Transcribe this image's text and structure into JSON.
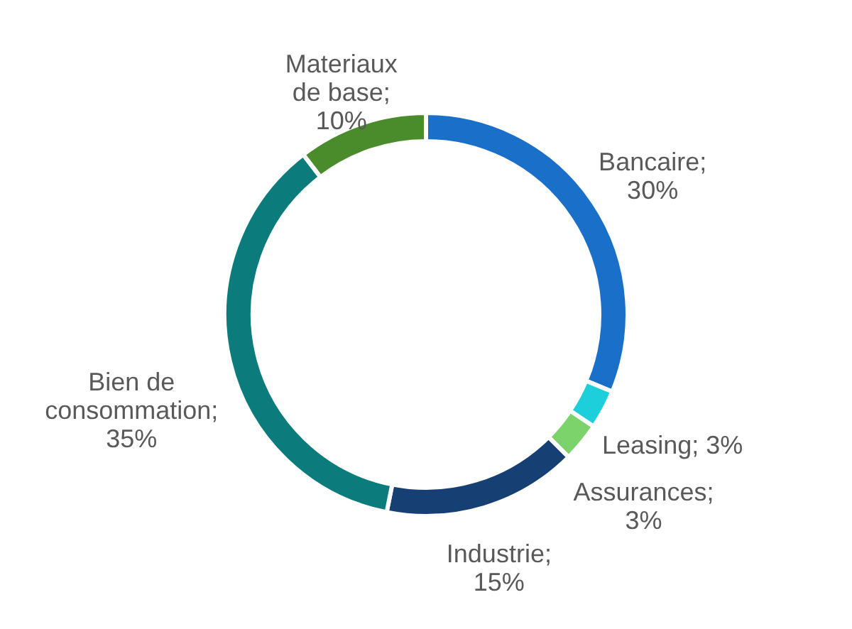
{
  "chart_data": {
    "type": "donut",
    "categories": [
      "Bancaire",
      "Leasing",
      "Assurances",
      "Industrie",
      "Bien de consommation",
      "Materiaux de base"
    ],
    "values": [
      30,
      3,
      3,
      15,
      35,
      10
    ],
    "colors": [
      "#1a6fc9",
      "#1ccfdb",
      "#7dd36b",
      "#163f73",
      "#0b7b7c",
      "#4a8b2b"
    ],
    "value_labels": [
      "; 30%",
      "; 3%",
      "; 3%",
      "; 15%",
      "; 35%",
      "; 10%"
    ]
  }
}
